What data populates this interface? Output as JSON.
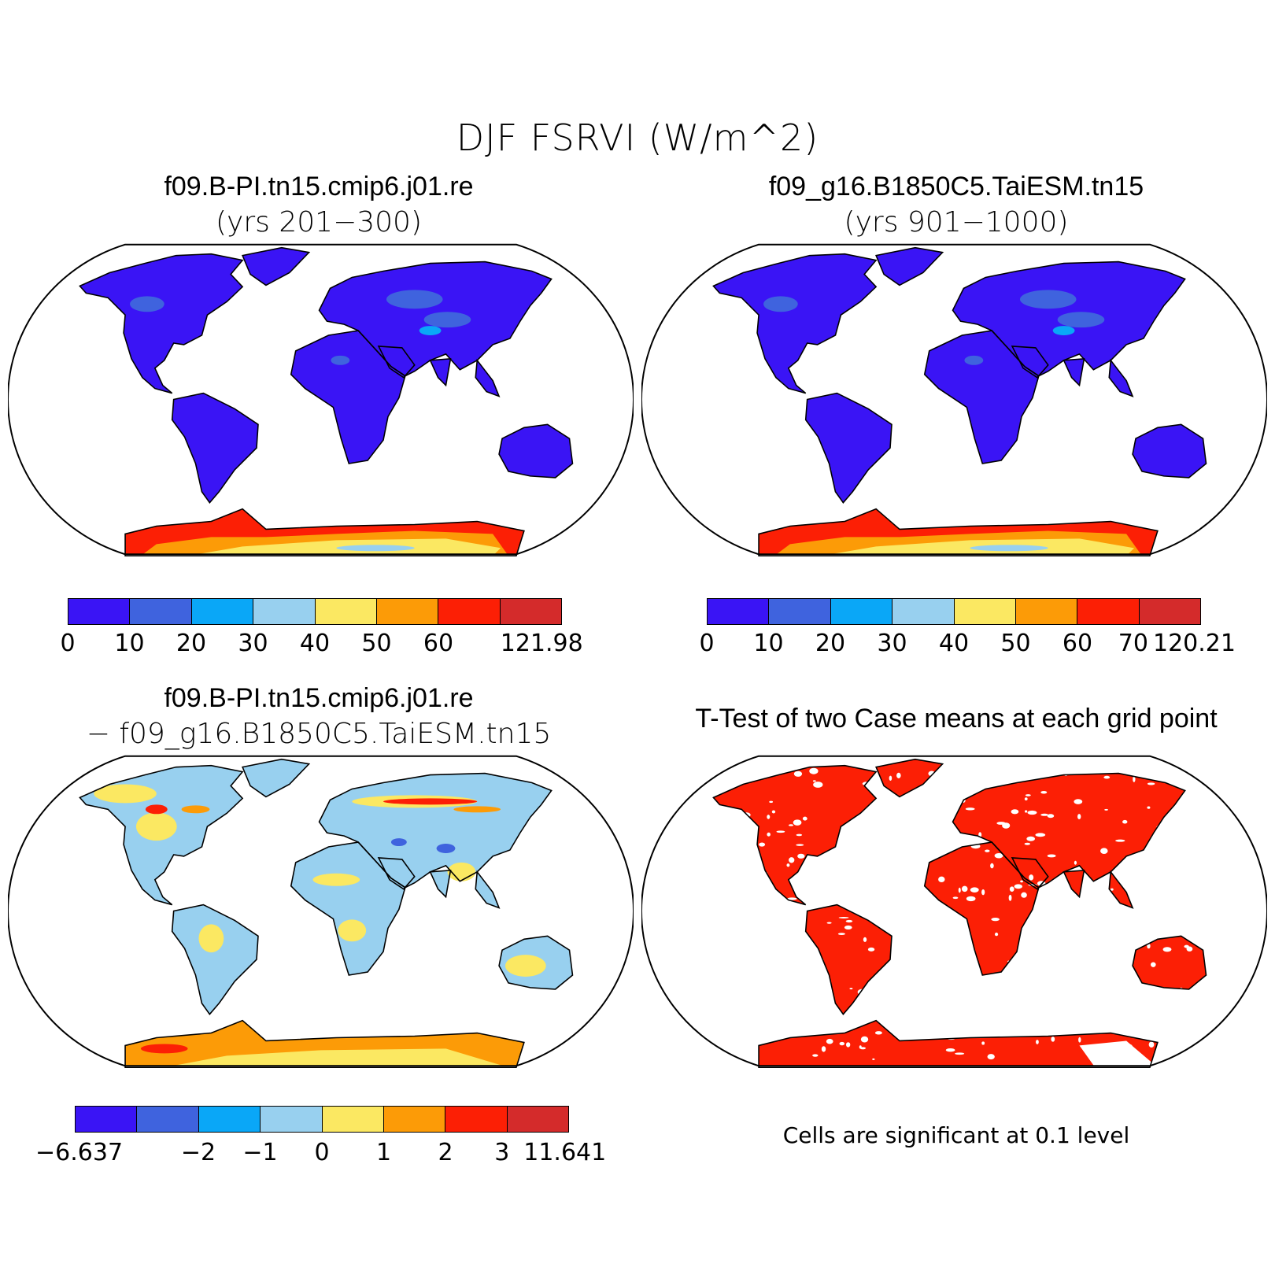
{
  "title": "DJF FSRVI (W/m^2)",
  "panels": [
    {
      "case": "f09.B-PI.tn15.cmip6.j01.re",
      "subtitle": "(yrs 201−300)",
      "kind": "mean"
    },
    {
      "case": "f09_g16.B1850C5.TaiESM.tn15",
      "subtitle": "(yrs 901−1000)",
      "kind": "mean"
    },
    {
      "case": "f09.B-PI.tn15.cmip6.j01.re",
      "subtitle": "− f09_g16.B1850C5.TaiESM.tn15",
      "kind": "difference"
    },
    {
      "case": "T-Test of two Case means at each grid point",
      "subtitle": "",
      "kind": "ttest",
      "note": "Cells are significant at 0.1 level"
    }
  ],
  "colorbars": {
    "colors": [
      "#3a14f5",
      "#3f63de",
      "#0aa7f7",
      "#98d0ef",
      "#fbe862",
      "#fc9b07",
      "#fc1f05",
      "#d42b2b"
    ],
    "bar1_labels": [
      "0",
      "10",
      "20",
      "30",
      "40",
      "50",
      "60",
      "121.98"
    ],
    "bar2_labels": [
      "0",
      "10",
      "20",
      "30",
      "40",
      "50",
      "60",
      "70",
      "120.21"
    ],
    "bar3_labels": [
      "−6.637",
      "−2",
      "−1",
      "0",
      "1",
      "2",
      "3",
      "11.641"
    ]
  },
  "map_colors": {
    "land": "#3a14f5",
    "land_mid": "#3f63de",
    "land_light": "#0aa7f7",
    "diff_base": "#98d0ef",
    "diff_pos": "#fbe862",
    "diff_hi": "#fc9b07",
    "diff_max": "#fc1f05",
    "diff_neg": "#3f63de",
    "sig": "#fc1f05",
    "ant_outer": "#fc1f05",
    "ant_mid": "#fc9b07",
    "ant_inner": "#fbe862",
    "ant_core": "#98d0ef"
  }
}
